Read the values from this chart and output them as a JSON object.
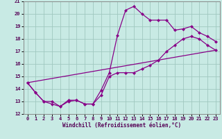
{
  "title": "",
  "xlabel": "Windchill (Refroidissement éolien,°C)",
  "ylabel": "",
  "bg_color": "#c8eae4",
  "line_color": "#880088",
  "grid_color": "#a0c8c0",
  "xlim": [
    -0.5,
    23.5
  ],
  "ylim": [
    12,
    21
  ],
  "xticks": [
    0,
    1,
    2,
    3,
    4,
    5,
    6,
    7,
    8,
    9,
    10,
    11,
    12,
    13,
    14,
    15,
    16,
    17,
    18,
    19,
    20,
    21,
    22,
    23
  ],
  "yticks": [
    12,
    13,
    14,
    15,
    16,
    17,
    18,
    19,
    20,
    21
  ],
  "line1_x": [
    0,
    1,
    2,
    3,
    4,
    5,
    6,
    7,
    8,
    9,
    10,
    11,
    12,
    13,
    14,
    15,
    16,
    17,
    18,
    19,
    20,
    21,
    22,
    23
  ],
  "line1_y": [
    14.5,
    13.7,
    13.0,
    12.8,
    12.6,
    13.1,
    13.1,
    12.8,
    12.8,
    13.9,
    15.3,
    18.3,
    20.3,
    20.6,
    20.0,
    19.5,
    19.5,
    19.5,
    18.7,
    18.8,
    19.0,
    18.5,
    18.2,
    17.8
  ],
  "line2_x": [
    0,
    1,
    2,
    3,
    4,
    5,
    6,
    7,
    8,
    9,
    10,
    11,
    12,
    13,
    14,
    15,
    16,
    17,
    18,
    19,
    20,
    21,
    22,
    23
  ],
  "line2_y": [
    14.5,
    13.7,
    13.0,
    13.0,
    12.6,
    13.0,
    13.1,
    12.8,
    12.8,
    13.5,
    15.0,
    15.3,
    15.3,
    15.3,
    15.6,
    15.9,
    16.3,
    17.0,
    17.5,
    18.0,
    18.2,
    18.0,
    17.5,
    17.1
  ],
  "line3_x": [
    0,
    23
  ],
  "line3_y": [
    14.5,
    17.1
  ],
  "markersize": 2.5,
  "linewidth": 0.9
}
